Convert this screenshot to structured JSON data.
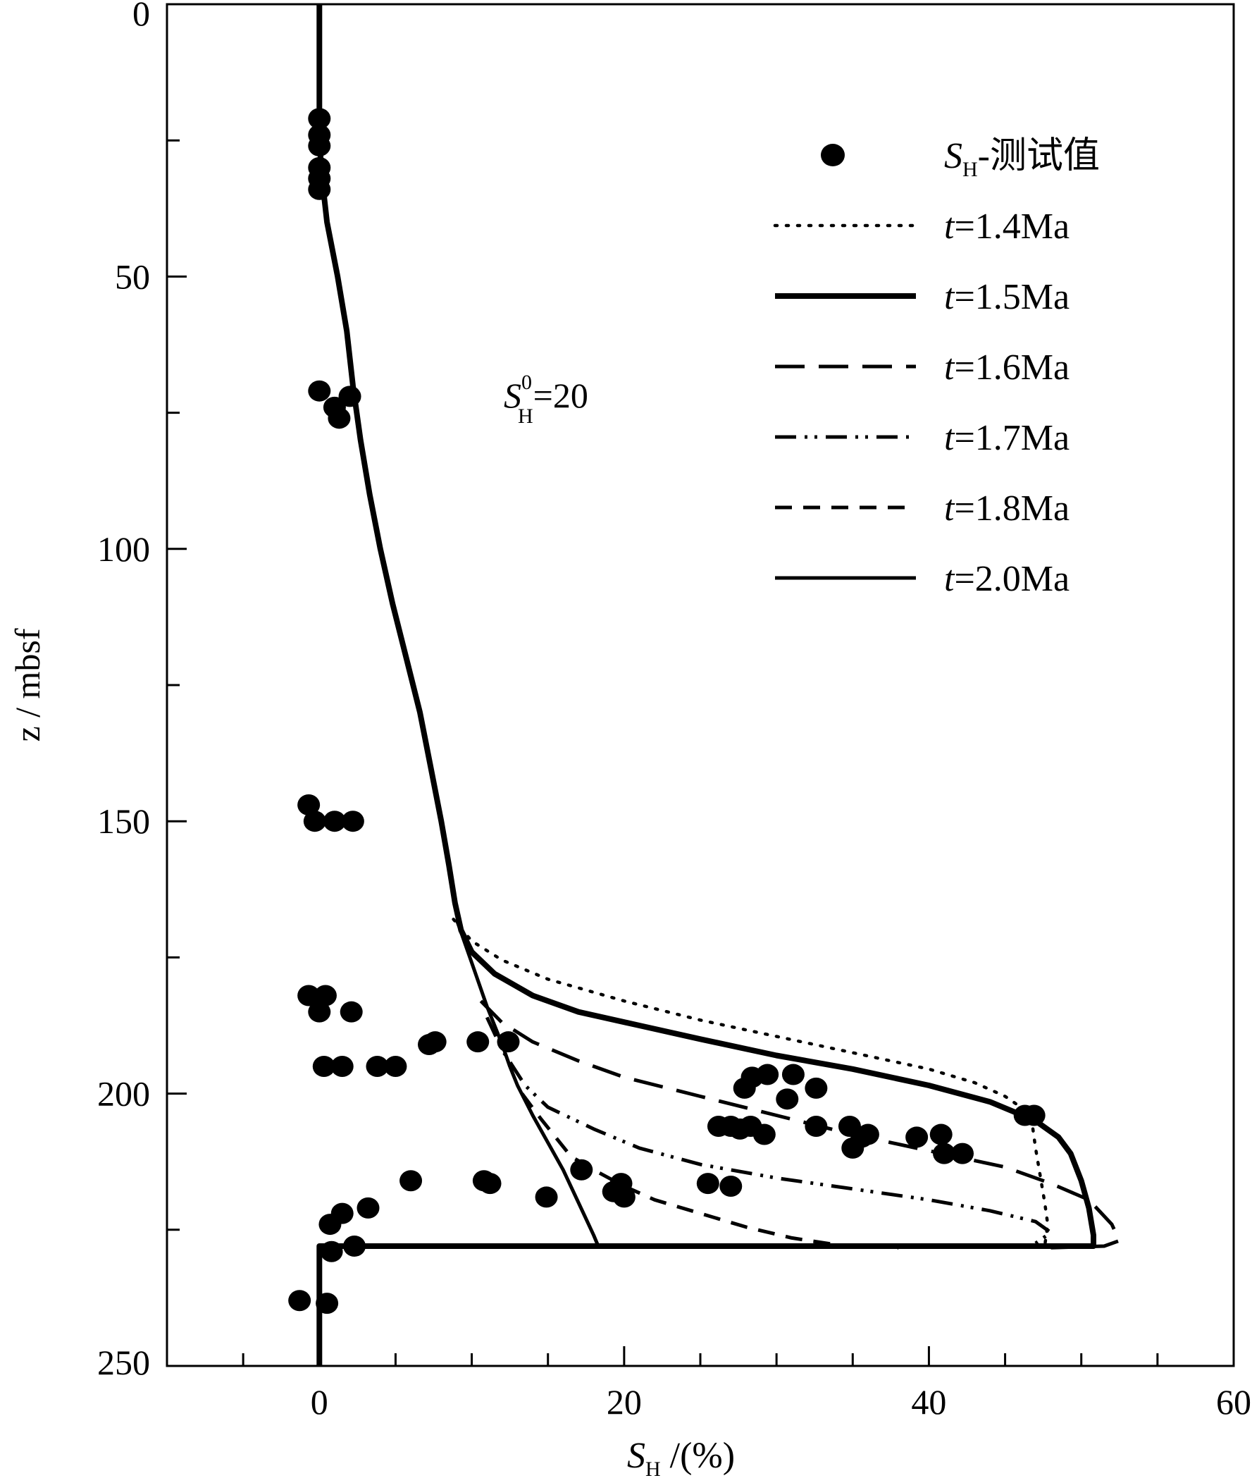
{
  "chart_data": {
    "type": "line",
    "title": "",
    "xlabel": {
      "symbol": "S",
      "sub": "H",
      "rest": " /(%)"
    },
    "ylabel": "z / mbsf",
    "xlim": [
      -10,
      60
    ],
    "ylim": [
      250,
      0
    ],
    "x_ticks": [
      0,
      20,
      40,
      60
    ],
    "x_minor_ticks": [
      -5,
      5,
      10,
      15,
      25,
      30,
      35,
      45,
      50,
      55
    ],
    "y_ticks": [
      0,
      50,
      100,
      150,
      200,
      250
    ],
    "y_minor_ticks": [
      25,
      75,
      125,
      175,
      225
    ],
    "grid": false,
    "legend_position": "top-right",
    "annotation": {
      "symbol": "S",
      "sup": "0",
      "sub": "H",
      "rest": "=20"
    },
    "series": [
      {
        "name": "S",
        "name_sub": "H",
        "name_rest": "-测试值",
        "kind": "scatter",
        "points": [
          [
            0,
            21
          ],
          [
            0,
            24
          ],
          [
            0,
            26
          ],
          [
            0,
            30
          ],
          [
            0,
            32
          ],
          [
            0,
            34
          ],
          [
            0,
            71
          ],
          [
            1,
            74
          ],
          [
            1.3,
            76
          ],
          [
            2,
            72
          ],
          [
            -0.7,
            147
          ],
          [
            -0.3,
            150
          ],
          [
            1,
            150
          ],
          [
            2.2,
            150
          ],
          [
            -0.7,
            182
          ],
          [
            0.4,
            182
          ],
          [
            0,
            185
          ],
          [
            2.1,
            185
          ],
          [
            0.3,
            195
          ],
          [
            1.5,
            195
          ],
          [
            3.8,
            195
          ],
          [
            5,
            195
          ],
          [
            7.2,
            191
          ],
          [
            7.6,
            190.5
          ],
          [
            10.4,
            190.5
          ],
          [
            12.4,
            190.5
          ],
          [
            6,
            216
          ],
          [
            10.8,
            216
          ],
          [
            11.2,
            216.5
          ],
          [
            14.9,
            219
          ],
          [
            17.2,
            214
          ],
          [
            19.3,
            218
          ],
          [
            19.8,
            216.5
          ],
          [
            20,
            219
          ],
          [
            25.5,
            216.5
          ],
          [
            27,
            217
          ],
          [
            0.7,
            224
          ],
          [
            1.5,
            222
          ],
          [
            3.2,
            221
          ],
          [
            0.8,
            229
          ],
          [
            2.3,
            228
          ],
          [
            -1.3,
            238
          ],
          [
            0.5,
            238.5
          ],
          [
            27.9,
            199
          ],
          [
            28.4,
            197
          ],
          [
            29.4,
            196.5
          ],
          [
            31.1,
            196.5
          ],
          [
            30.7,
            201
          ],
          [
            32.6,
            199
          ],
          [
            26.2,
            206
          ],
          [
            27,
            206
          ],
          [
            27.6,
            206.5
          ],
          [
            28.3,
            206
          ],
          [
            29.2,
            207.5
          ],
          [
            32.6,
            206
          ],
          [
            34.8,
            206
          ],
          [
            35,
            210
          ],
          [
            35.6,
            208
          ],
          [
            36,
            207.5
          ],
          [
            39.2,
            208
          ],
          [
            40.8,
            207.5
          ],
          [
            41,
            211
          ],
          [
            42.2,
            211
          ],
          [
            46.3,
            204
          ],
          [
            46.9,
            204
          ]
        ]
      },
      {
        "name": "t",
        "name_rest": "=1.4Ma",
        "kind": "line",
        "dash": "dotted",
        "points": [
          [
            8.8,
            168
          ],
          [
            10,
            172
          ],
          [
            12,
            175.5
          ],
          [
            15,
            179
          ],
          [
            20,
            183
          ],
          [
            25,
            186.5
          ],
          [
            30,
            189.5
          ],
          [
            35,
            192.5
          ],
          [
            40,
            195.5
          ],
          [
            43,
            198
          ],
          [
            45,
            200.5
          ],
          [
            46.3,
            203
          ],
          [
            46.8,
            206
          ],
          [
            47,
            210
          ],
          [
            47.3,
            215
          ],
          [
            47.6,
            220
          ],
          [
            47.8,
            224
          ],
          [
            47.6,
            228
          ]
        ]
      },
      {
        "name": "t",
        "name_rest": "=1.5Ma",
        "kind": "line",
        "dash": "solid-thick",
        "points": [
          [
            0,
            0
          ],
          [
            0,
            10
          ],
          [
            0,
            20
          ],
          [
            0.1,
            30
          ],
          [
            0.5,
            40
          ],
          [
            1.2,
            50
          ],
          [
            1.8,
            60
          ],
          [
            2.2,
            70
          ],
          [
            2.7,
            80
          ],
          [
            3.3,
            90
          ],
          [
            4,
            100
          ],
          [
            4.8,
            110
          ],
          [
            5.7,
            120
          ],
          [
            6.6,
            130
          ],
          [
            7.3,
            140
          ],
          [
            8,
            150
          ],
          [
            8.5,
            158
          ],
          [
            8.9,
            165
          ],
          [
            9.3,
            170
          ],
          [
            10,
            174
          ],
          [
            11.5,
            178
          ],
          [
            14,
            182
          ],
          [
            17,
            185
          ],
          [
            21,
            187.5
          ],
          [
            25,
            190
          ],
          [
            30,
            193
          ],
          [
            35,
            195.5
          ],
          [
            40,
            198.5
          ],
          [
            44,
            201.5
          ],
          [
            47,
            205
          ],
          [
            48.5,
            208
          ],
          [
            49.3,
            211
          ],
          [
            50,
            216
          ],
          [
            50.5,
            221
          ],
          [
            50.8,
            226
          ],
          [
            50.8,
            228
          ],
          [
            30,
            228
          ],
          [
            17.2,
            228
          ],
          [
            0,
            228
          ],
          [
            0,
            232
          ],
          [
            0,
            238
          ],
          [
            0,
            244
          ],
          [
            0,
            250
          ]
        ]
      },
      {
        "name": "t",
        "name_rest": "=1.6Ma",
        "kind": "line",
        "dash": "long-dash",
        "points": [
          [
            10.6,
            183
          ],
          [
            12,
            187
          ],
          [
            14,
            190.5
          ],
          [
            17,
            194
          ],
          [
            20,
            197
          ],
          [
            25,
            200.5
          ],
          [
            30,
            204
          ],
          [
            35,
            207.5
          ],
          [
            40,
            210.5
          ],
          [
            45,
            213.5
          ],
          [
            48,
            216.5
          ],
          [
            50.5,
            219.5
          ],
          [
            52,
            224
          ],
          [
            52.5,
            227
          ],
          [
            51.5,
            228
          ],
          [
            48,
            228.3
          ]
        ]
      },
      {
        "name": "t",
        "name_rest": "=1.7Ma",
        "kind": "line",
        "dash": "dash-dot-dot",
        "points": [
          [
            11,
            186
          ],
          [
            12,
            192
          ],
          [
            13.5,
            198.5
          ],
          [
            15,
            202.5
          ],
          [
            18,
            206.5
          ],
          [
            21,
            210
          ],
          [
            25,
            213
          ],
          [
            30,
            215.5
          ],
          [
            35,
            217.5
          ],
          [
            40,
            219.5
          ],
          [
            44,
            221.5
          ],
          [
            47,
            223.5
          ],
          [
            48,
            225.5
          ],
          [
            47,
            227.5
          ]
        ]
      },
      {
        "name": "t",
        "name_rest": "=1.8Ma",
        "kind": "line",
        "dash": "medium-dash",
        "points": [
          [
            13.3,
            200
          ],
          [
            14.5,
            204.5
          ],
          [
            15.5,
            208
          ],
          [
            16.5,
            211.5
          ],
          [
            18,
            214
          ],
          [
            20,
            217
          ],
          [
            22,
            219.5
          ],
          [
            25,
            222
          ],
          [
            28,
            224.5
          ],
          [
            31,
            226.5
          ],
          [
            34,
            227.8
          ],
          [
            38,
            228.3
          ]
        ]
      },
      {
        "name": "t",
        "name_rest": "=2.0Ma",
        "kind": "line",
        "dash": "solid-thin",
        "points": [
          [
            9,
            168
          ],
          [
            10,
            176
          ],
          [
            11,
            184
          ],
          [
            12,
            191
          ],
          [
            12.5,
            195
          ],
          [
            13,
            198.5
          ],
          [
            14,
            204
          ],
          [
            15,
            209
          ],
          [
            16,
            214
          ],
          [
            17,
            220
          ],
          [
            17.5,
            223
          ],
          [
            18,
            226
          ],
          [
            18.3,
            228
          ]
        ]
      }
    ]
  }
}
